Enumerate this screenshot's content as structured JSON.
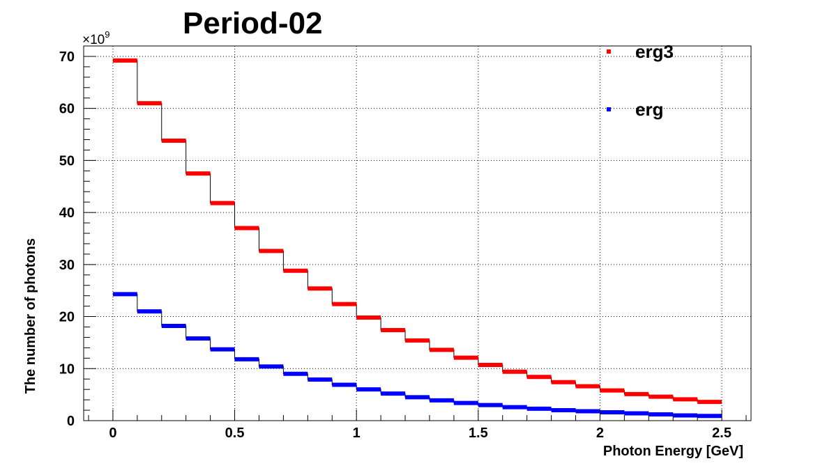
{
  "chart_data": {
    "type": "step",
    "title": "Period-02",
    "xlabel": "Photon Energy [GeV]",
    "ylabel": "The number of photons",
    "y_multiplier": "×10",
    "y_multiplier_exponent": "9",
    "xlim": [
      -0.12,
      2.62
    ],
    "ylim": [
      0,
      72
    ],
    "x_ticks": [
      0,
      0.5,
      1,
      1.5,
      2,
      2.5
    ],
    "x_tick_labels": [
      "0",
      "0.5",
      "1",
      "1.5",
      "2",
      "2.5"
    ],
    "y_ticks": [
      0,
      10,
      20,
      30,
      40,
      50,
      60,
      70
    ],
    "y_tick_labels": [
      "0",
      "10",
      "20",
      "30",
      "40",
      "50",
      "60",
      "70"
    ],
    "grid": true,
    "legend_position": "top-right",
    "bin_edges": [
      0,
      0.1,
      0.2,
      0.3,
      0.4,
      0.5,
      0.6,
      0.7,
      0.8,
      0.9,
      1.0,
      1.1,
      1.2,
      1.3,
      1.4,
      1.5,
      1.6,
      1.7,
      1.8,
      1.9,
      2.0,
      2.1,
      2.2,
      2.3,
      2.4,
      2.5
    ],
    "series": [
      {
        "name": "erg3",
        "color": "#ff0000",
        "values": [
          69.2,
          61.0,
          53.8,
          47.5,
          41.8,
          37.0,
          32.6,
          28.8,
          25.4,
          22.4,
          19.8,
          17.4,
          15.4,
          13.6,
          12.1,
          10.7,
          9.4,
          8.4,
          7.4,
          6.6,
          5.8,
          5.1,
          4.6,
          4.1,
          3.6
        ]
      },
      {
        "name": "erg",
        "color": "#0000ff",
        "values": [
          24.3,
          21.0,
          18.2,
          15.8,
          13.7,
          11.8,
          10.4,
          9.0,
          7.9,
          6.9,
          6.0,
          5.2,
          4.5,
          3.9,
          3.4,
          3.0,
          2.6,
          2.3,
          2.0,
          1.8,
          1.6,
          1.4,
          1.2,
          1.0,
          0.9
        ]
      }
    ]
  }
}
